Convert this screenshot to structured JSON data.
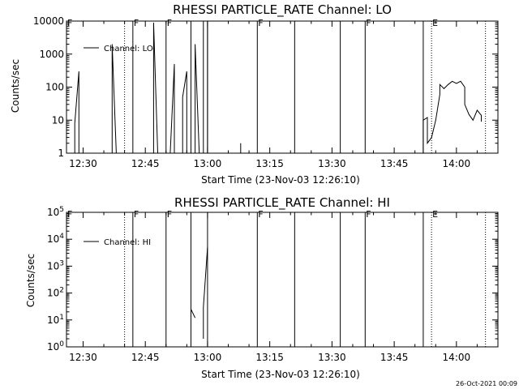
{
  "figure": {
    "footer": "26-Oct-2021 00:09"
  },
  "chart_data": [
    {
      "type": "line",
      "title": "RHESSI PARTICLE_RATE Channel: LO",
      "xlabel": "Start Time (23-Nov-03 12:26:10)",
      "ylabel": "Counts/sec",
      "yscale": "log",
      "xlim": [
        "12:26",
        "14:10"
      ],
      "ylim": [
        1,
        10000
      ],
      "xticks": [
        "12:30",
        "12:45",
        "13:00",
        "13:15",
        "13:30",
        "13:45",
        "14:00"
      ],
      "yticks": [
        {
          "v": 1,
          "label": "1"
        },
        {
          "v": 10,
          "label": "10"
        },
        {
          "v": 100,
          "label": "100"
        },
        {
          "v": 1000,
          "label": "1000"
        },
        {
          "v": 10000,
          "label": "10000"
        }
      ],
      "legend": {
        "label": "Channel: LO",
        "position": "top-left"
      },
      "markers": [
        {
          "x": "12:26",
          "flag": "F",
          "style": "solid"
        },
        {
          "x": "12:40",
          "flag": "",
          "style": "dotted"
        },
        {
          "x": "12:42",
          "flag": "F",
          "style": "solid"
        },
        {
          "x": "12:50",
          "flag": "F",
          "style": "solid"
        },
        {
          "x": "12:56",
          "flag": "",
          "style": "solid"
        },
        {
          "x": "13:00",
          "flag": "",
          "style": "solid"
        },
        {
          "x": "13:12",
          "flag": "F",
          "style": "solid"
        },
        {
          "x": "13:21",
          "flag": "",
          "style": "solid"
        },
        {
          "x": "13:32",
          "flag": "",
          "style": "solid"
        },
        {
          "x": "13:38",
          "flag": "F",
          "style": "solid"
        },
        {
          "x": "13:52",
          "flag": "",
          "style": "solid"
        },
        {
          "x": "13:54",
          "flag": "E",
          "style": "dotted"
        },
        {
          "x": "14:07",
          "flag": "",
          "style": "dotted"
        }
      ],
      "series": [
        {
          "name": "Channel: LO",
          "segments": [
            [
              [
                "12:28",
                1
              ],
              [
                "12:28",
                8
              ],
              [
                "12:29",
                300
              ],
              [
                "12:29",
                1
              ]
            ],
            [
              [
                "12:37",
                1
              ],
              [
                "12:37",
                2000
              ],
              [
                "12:38",
                1
              ]
            ],
            [
              [
                "12:47",
                1
              ],
              [
                "12:47",
                9000
              ],
              [
                "12:48",
                1
              ]
            ],
            [
              [
                "12:51",
                1
              ],
              [
                "12:52",
                500
              ],
              [
                "12:52",
                1
              ]
            ],
            [
              [
                "12:54",
                1
              ],
              [
                "12:54",
                50
              ],
              [
                "12:55",
                300
              ],
              [
                "12:55",
                1
              ]
            ],
            [
              [
                "12:57",
                1
              ],
              [
                "12:57",
                2000
              ],
              [
                "12:58",
                1
              ]
            ],
            [
              [
                "12:59",
                1
              ],
              [
                "12:59",
                10000
              ],
              [
                "13:00",
                10000
              ],
              [
                "13:00",
                1
              ]
            ],
            [
              [
                "13:08",
                1
              ],
              [
                "13:08",
                2
              ]
            ],
            [
              [
                "13:52",
                1
              ],
              [
                "13:52",
                10
              ],
              [
                "13:53",
                12
              ],
              [
                "13:53",
                6
              ],
              [
                "13:53",
                2
              ],
              [
                "13:54",
                3
              ],
              [
                "13:55",
                10
              ],
              [
                "13:56",
                60
              ],
              [
                "13:56",
                120
              ],
              [
                "13:57",
                90
              ],
              [
                "13:58",
                120
              ],
              [
                "13:59",
                150
              ],
              [
                "14:00",
                130
              ],
              [
                "14:01",
                150
              ],
              [
                "14:02",
                100
              ],
              [
                "14:02",
                30
              ],
              [
                "14:03",
                15
              ],
              [
                "14:04",
                10
              ],
              [
                "14:05",
                20
              ],
              [
                "14:06",
                14
              ],
              [
                "14:06",
                9
              ]
            ]
          ]
        }
      ]
    },
    {
      "type": "line",
      "title": "RHESSI PARTICLE_RATE Channel: HI",
      "xlabel": "Start Time (23-Nov-03 12:26:10)",
      "ylabel": "Counts/sec",
      "yscale": "log",
      "xlim": [
        "12:26",
        "14:10"
      ],
      "ylim": [
        1,
        100000
      ],
      "xticks": [
        "12:30",
        "12:45",
        "13:00",
        "13:15",
        "13:30",
        "13:45",
        "14:00"
      ],
      "yticks": [
        {
          "v": 1,
          "base": "10",
          "exp": "0"
        },
        {
          "v": 10,
          "base": "10",
          "exp": "1"
        },
        {
          "v": 100,
          "base": "10",
          "exp": "2"
        },
        {
          "v": 1000,
          "base": "10",
          "exp": "3"
        },
        {
          "v": 10000,
          "base": "10",
          "exp": "4"
        },
        {
          "v": 100000,
          "base": "10",
          "exp": "5"
        }
      ],
      "legend": {
        "label": "Channel: HI",
        "position": "top-left"
      },
      "markers": [
        {
          "x": "12:26",
          "flag": "F",
          "style": "solid"
        },
        {
          "x": "12:40",
          "flag": "",
          "style": "dotted"
        },
        {
          "x": "12:42",
          "flag": "F",
          "style": "solid"
        },
        {
          "x": "12:50",
          "flag": "F",
          "style": "solid"
        },
        {
          "x": "12:56",
          "flag": "",
          "style": "solid"
        },
        {
          "x": "13:00",
          "flag": "",
          "style": "solid"
        },
        {
          "x": "13:12",
          "flag": "F",
          "style": "solid"
        },
        {
          "x": "13:21",
          "flag": "",
          "style": "solid"
        },
        {
          "x": "13:32",
          "flag": "",
          "style": "solid"
        },
        {
          "x": "13:38",
          "flag": "F",
          "style": "solid"
        },
        {
          "x": "13:52",
          "flag": "",
          "style": "solid"
        },
        {
          "x": "13:54",
          "flag": "E",
          "style": "dotted"
        },
        {
          "x": "14:07",
          "flag": "",
          "style": "dotted"
        }
      ],
      "series": [
        {
          "name": "Channel: HI",
          "segments": [
            [
              [
                "12:56",
                25
              ],
              [
                "12:57",
                12
              ]
            ],
            [
              [
                "12:59",
                2
              ],
              [
                "12:59",
                30
              ],
              [
                "13:00",
                5000
              ]
            ]
          ]
        }
      ]
    }
  ]
}
